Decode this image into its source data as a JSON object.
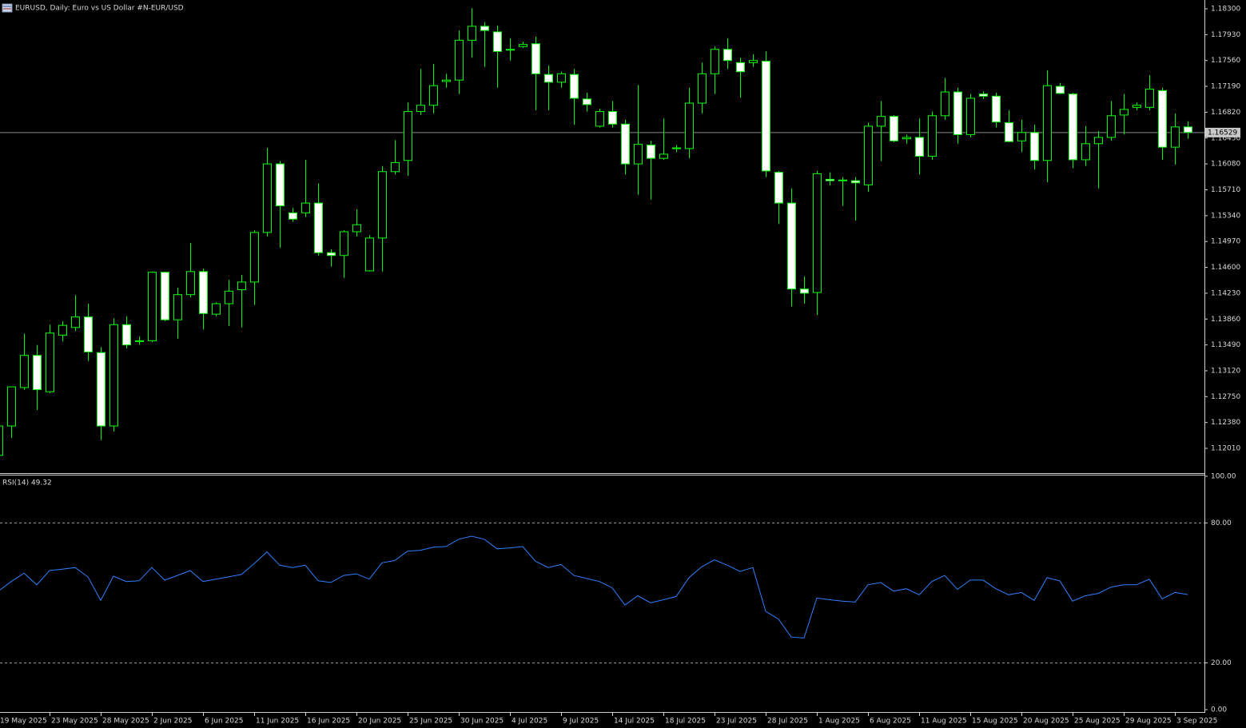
{
  "chart_data": [
    {
      "type": "candlestick",
      "title": "EURUSD, Daily:  Euro vs US Dollar #N-EUR/USD",
      "categories": [
        "19 May 2025",
        null,
        null,
        null,
        "23 May 2025",
        null,
        null,
        null,
        "28 May 2025",
        null,
        null,
        null,
        "2 Jun 2025",
        null,
        null,
        null,
        "6 Jun 2025",
        null,
        null,
        null,
        "11 Jun 2025",
        null,
        null,
        null,
        "16 Jun 2025",
        null,
        null,
        null,
        "20 Jun 2025",
        null,
        null,
        null,
        "25 Jun 2025",
        null,
        null,
        null,
        "30 Jun 2025",
        null,
        null,
        null,
        "4 Jul 2025",
        null,
        null,
        null,
        "9 Jul 2025",
        null,
        null,
        null,
        "14 Jul 2025",
        null,
        null,
        null,
        "18 Jul 2025",
        null,
        null,
        null,
        "23 Jul 2025",
        null,
        null,
        null,
        "28 Jul 2025",
        null,
        null,
        null,
        "1 Aug 2025",
        null,
        null,
        null,
        "6 Aug 2025",
        null,
        null,
        null,
        "11 Aug 2025",
        null,
        null,
        null,
        "15 Aug 2025",
        null,
        null,
        null,
        "20 Aug 2025",
        null,
        null,
        null,
        "25 Aug 2025",
        null,
        null,
        null,
        "29 Aug 2025",
        null,
        null,
        null,
        "3 Sep 2025",
        null
      ],
      "open": [
        1.1191,
        1.1233,
        1.1288,
        1.1334,
        1.1282,
        1.1363,
        1.1374,
        1.1389,
        1.1338,
        1.1233,
        1.1378,
        1.1354,
        1.1355,
        1.1453,
        1.1385,
        1.1421,
        1.1454,
        1.1393,
        1.1408,
        1.1428,
        1.1439,
        1.151,
        1.1608,
        1.1538,
        1.1538,
        1.1552,
        1.1481,
        1.1477,
        1.1511,
        1.1455,
        1.1502,
        1.1597,
        1.1613,
        1.1683,
        1.1692,
        1.1726,
        1.1728,
        1.1785,
        1.1805,
        1.1797,
        1.1772,
        1.1776,
        1.178,
        1.1736,
        1.1725,
        1.1736,
        1.1701,
        1.1662,
        1.1683,
        1.1665,
        1.1608,
        1.1635,
        1.1616,
        1.163,
        1.163,
        1.1695,
        1.1737,
        1.1772,
        1.1753,
        1.1753,
        1.1755,
        1.1596,
        1.1552,
        1.1429,
        1.1424,
        1.1586,
        1.1585,
        1.1584,
        1.1578,
        1.1662,
        1.1676,
        1.1644,
        1.1646,
        1.1619,
        1.1677,
        1.1711,
        1.165,
        1.1708,
        1.1705,
        1.1667,
        1.1641,
        1.1653,
        1.1613,
        1.1719,
        1.1708,
        1.1614,
        1.1637,
        1.1646,
        1.1678,
        1.1689,
        1.1689,
        1.1713,
        1.1632,
        1.1661
      ],
      "high": [
        1.1248,
        1.1289,
        1.1365,
        1.1349,
        1.1378,
        1.1383,
        1.142,
        1.1408,
        1.1346,
        1.1387,
        1.139,
        1.1361,
        1.1454,
        1.1454,
        1.1431,
        1.1495,
        1.1458,
        1.141,
        1.1442,
        1.1449,
        1.1513,
        1.1631,
        1.1612,
        1.1545,
        1.1614,
        1.158,
        1.1486,
        1.1513,
        1.1543,
        1.1506,
        1.1605,
        1.1642,
        1.1696,
        1.1744,
        1.1751,
        1.1737,
        1.1799,
        1.1831,
        1.1811,
        1.1806,
        1.1788,
        1.1783,
        1.179,
        1.1749,
        1.174,
        1.1744,
        1.171,
        1.1687,
        1.1698,
        1.1671,
        1.1721,
        1.1641,
        1.1673,
        1.1635,
        1.1717,
        1.1753,
        1.1776,
        1.1788,
        1.176,
        1.1765,
        1.1769,
        1.1598,
        1.1573,
        1.1447,
        1.1598,
        1.1596,
        1.1589,
        1.1589,
        1.1667,
        1.1698,
        1.1678,
        1.165,
        1.1673,
        1.1683,
        1.1731,
        1.1717,
        1.1708,
        1.1712,
        1.171,
        1.1685,
        1.1671,
        1.1664,
        1.1742,
        1.1724,
        1.171,
        1.1662,
        1.1655,
        1.1698,
        1.1708,
        1.1696,
        1.1735,
        1.1717,
        1.168,
        1.1669
      ],
      "low": [
        1.1189,
        1.1216,
        1.1285,
        1.1256,
        1.128,
        1.1354,
        1.1369,
        1.1326,
        1.1213,
        1.1225,
        1.1344,
        1.1349,
        1.1353,
        1.1383,
        1.1358,
        1.1417,
        1.1371,
        1.139,
        1.1376,
        1.1374,
        1.1406,
        1.1504,
        1.1488,
        1.1525,
        1.1532,
        1.1477,
        1.1461,
        1.1445,
        1.1504,
        1.1454,
        1.1454,
        1.1593,
        1.1591,
        1.1678,
        1.168,
        1.1717,
        1.1708,
        1.176,
        1.1747,
        1.1717,
        1.1756,
        1.1774,
        1.1685,
        1.1685,
        1.1717,
        1.1664,
        1.1683,
        1.166,
        1.166,
        1.1593,
        1.1564,
        1.1557,
        1.1614,
        1.1625,
        1.1616,
        1.168,
        1.1708,
        1.1744,
        1.1703,
        1.1747,
        1.1589,
        1.1522,
        1.1404,
        1.1408,
        1.1392,
        1.1577,
        1.1548,
        1.1527,
        1.1568,
        1.1612,
        1.1639,
        1.1637,
        1.1593,
        1.1614,
        1.1671,
        1.1637,
        1.1646,
        1.1701,
        1.166,
        1.1639,
        1.1625,
        1.16,
        1.1582,
        1.1708,
        1.1602,
        1.1605,
        1.1573,
        1.1641,
        1.165,
        1.1685,
        1.1685,
        1.1614,
        1.1607,
        1.1644
      ],
      "close": [
        1.1233,
        1.1289,
        1.1334,
        1.1285,
        1.1366,
        1.1377,
        1.1389,
        1.1339,
        1.1233,
        1.1378,
        1.1349,
        1.1355,
        1.1453,
        1.1385,
        1.1421,
        1.1454,
        1.1394,
        1.1408,
        1.1426,
        1.1439,
        1.151,
        1.1608,
        1.1548,
        1.1529,
        1.1552,
        1.1481,
        1.1477,
        1.1511,
        1.1521,
        1.1502,
        1.1597,
        1.161,
        1.1683,
        1.1692,
        1.172,
        1.1728,
        1.1785,
        1.1805,
        1.1799,
        1.1769,
        1.1771,
        1.1779,
        1.1737,
        1.1725,
        1.1737,
        1.1702,
        1.1693,
        1.1683,
        1.1665,
        1.1608,
        1.1636,
        1.1616,
        1.1622,
        1.1631,
        1.1695,
        1.1737,
        1.1772,
        1.1756,
        1.174,
        1.1756,
        1.1598,
        1.1552,
        1.1429,
        1.1423,
        1.1594,
        1.1584,
        1.1584,
        1.1581,
        1.1662,
        1.1676,
        1.1641,
        1.1646,
        1.1619,
        1.1677,
        1.1711,
        1.165,
        1.1702,
        1.1705,
        1.1668,
        1.164,
        1.1653,
        1.1613,
        1.172,
        1.1709,
        1.1614,
        1.1637,
        1.1646,
        1.1677,
        1.1686,
        1.1692,
        1.1715,
        1.1632,
        1.1661,
        1.1653
      ],
      "current_price": 1.16529,
      "up_color": "#000000",
      "down_color": "#ffffff",
      "wick_color": "#00ff00",
      "price_line_color": "#8a8a8a",
      "ylim": [
        1.11656,
        1.18426
      ],
      "yticks": [
        {
          "value": 1.183,
          "label": "1.18300"
        },
        {
          "value": 1.1793,
          "label": "1.17930"
        },
        {
          "value": 1.1756,
          "label": "1.17560"
        },
        {
          "value": 1.1719,
          "label": "1.17190"
        },
        {
          "value": 1.1682,
          "label": "1.16820"
        },
        {
          "value": 1.1645,
          "label": "1.16450"
        },
        {
          "value": 1.1608,
          "label": "1.16080"
        },
        {
          "value": 1.1571,
          "label": "1.15710"
        },
        {
          "value": 1.1534,
          "label": "1.15340"
        },
        {
          "value": 1.1497,
          "label": "1.14970"
        },
        {
          "value": 1.146,
          "label": "1.14600"
        },
        {
          "value": 1.1423,
          "label": "1.14230"
        },
        {
          "value": 1.1386,
          "label": "1.13860"
        },
        {
          "value": 1.1349,
          "label": "1.13490"
        },
        {
          "value": 1.1312,
          "label": "1.13120"
        },
        {
          "value": 1.1275,
          "label": "1.12750"
        },
        {
          "value": 1.1238,
          "label": "1.12380"
        },
        {
          "value": 1.1201,
          "label": "1.12010"
        }
      ],
      "grid": false
    },
    {
      "type": "line",
      "title": "RSI(14) 49.32",
      "values": [
        50.8,
        54.9,
        58.5,
        53.5,
        59.6,
        60.2,
        60.9,
        56.9,
        46.8,
        57.2,
        54.9,
        55.2,
        60.9,
        55.5,
        57.5,
        59.6,
        54.9,
        55.9,
        56.9,
        57.9,
        62.6,
        67.6,
        61.9,
        60.9,
        61.9,
        55.2,
        54.5,
        57.5,
        58.2,
        55.9,
        62.9,
        63.9,
        67.9,
        68.3,
        69.6,
        69.9,
        73.0,
        74.3,
        73.0,
        68.9,
        69.3,
        69.9,
        63.6,
        60.9,
        62.2,
        57.5,
        56.2,
        54.9,
        52.2,
        44.8,
        48.8,
        45.8,
        47.1,
        48.5,
        56.5,
        61.2,
        64.2,
        61.9,
        59.2,
        60.9,
        42.1,
        38.8,
        31.1,
        30.7,
        47.8,
        47.1,
        46.5,
        46.1,
        53.5,
        54.5,
        50.8,
        51.8,
        49.2,
        54.9,
        57.5,
        51.5,
        55.5,
        55.5,
        51.8,
        49.2,
        50.2,
        46.8,
        56.5,
        55.2,
        46.5,
        48.8,
        49.8,
        52.5,
        53.5,
        53.5,
        55.9,
        47.5,
        50.2,
        49.32
      ],
      "color": "#2f7fff",
      "ylim": [
        0,
        100
      ],
      "yticks": [
        {
          "value": 100,
          "label": "100.00"
        },
        {
          "value": 80,
          "label": "80.00"
        },
        {
          "value": 20,
          "label": "20.00"
        },
        {
          "value": 0,
          "label": "0.00"
        }
      ]
    }
  ]
}
